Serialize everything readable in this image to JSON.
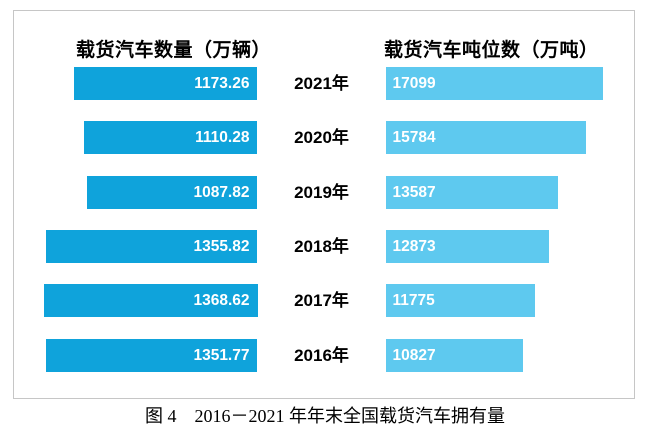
{
  "figure": {
    "left_axis_title": "载货汽车数量（万辆）",
    "right_axis_title": "载货汽车吨位数（万吨）",
    "caption": "图 4　2016－2021 年年末全国载货汽车拥有量"
  },
  "colors": {
    "left_bar": "#0fa3db",
    "right_bar": "#5ec9ef",
    "box_border": "#c6c6c6",
    "bar_value_text": "#ffffff",
    "label_text": "#000000"
  },
  "chart_data": {
    "type": "bar",
    "orientation": "horizontal-diverging",
    "categories": [
      "2021年",
      "2020年",
      "2019年",
      "2018年",
      "2017年",
      "2016年"
    ],
    "series": [
      {
        "name": "载货汽车数量（万辆）",
        "side": "left",
        "values": [
          1173.26,
          1110.28,
          1087.82,
          1355.82,
          1368.62,
          1351.77
        ],
        "value_labels": [
          "1173.26",
          "1110.28",
          "1087.82",
          "1355.82",
          "1368.62",
          "1351.77"
        ]
      },
      {
        "name": "载货汽车吨位数（万吨）",
        "side": "right",
        "values": [
          17099,
          15784,
          13587,
          12873,
          11775,
          10827
        ],
        "value_labels": [
          "17099",
          "15784",
          "13587",
          "12873",
          "11775",
          "10827"
        ]
      }
    ],
    "title": "图 4　2016－2021 年年末全国载货汽车拥有量",
    "xlabel": "",
    "ylabel": "",
    "grid": false,
    "legend_position": "none",
    "value_labels_shown": true
  }
}
